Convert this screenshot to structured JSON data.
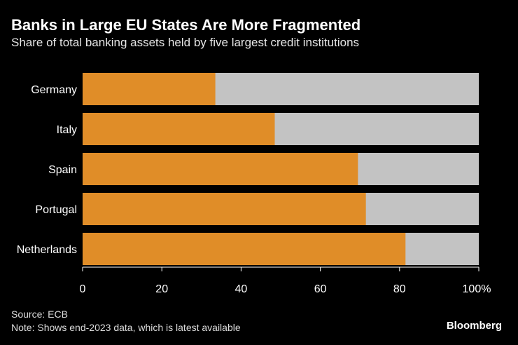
{
  "title": "Banks in Large EU States Are More Fragmented",
  "subtitle": "Share of total banking assets held by five largest credit institutions",
  "chart_data": {
    "type": "bar",
    "orientation": "horizontal",
    "stacked": true,
    "categories": [
      "Germany",
      "Italy",
      "Spain",
      "Portugal",
      "Netherlands"
    ],
    "values": [
      33.5,
      48.5,
      69.5,
      71.5,
      81.5
    ],
    "xlim": [
      0,
      100
    ],
    "xticks": [
      "0",
      "20",
      "40",
      "60",
      "80",
      "100%"
    ],
    "grid": false,
    "colors": {
      "share": "#e08d28",
      "remainder": "#c3c3c3",
      "background": "#000000",
      "axis": "#ffffff"
    }
  },
  "footer": {
    "source": "Source: ECB",
    "note": "Note: Shows end-2023 data, which is latest available",
    "brand": "Bloomberg"
  }
}
